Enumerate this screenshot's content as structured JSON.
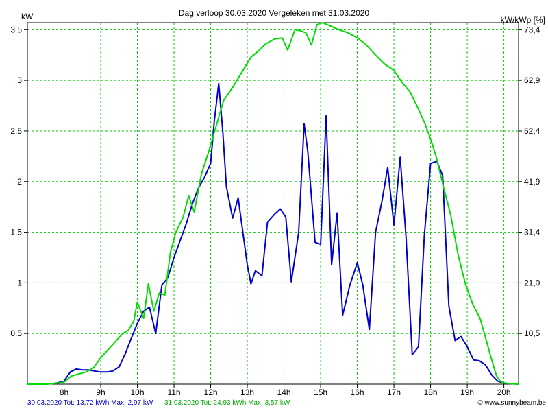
{
  "chart_data": {
    "type": "line",
    "title": "Dag  verloop 30.03.2020   Vergeleken met 31.03.2020",
    "ylabel_left": "kW",
    "ylabel_right": "kW/kWp [%]",
    "xlim": [
      7.0,
      20.4
    ],
    "ylim": [
      0,
      3.57
    ],
    "x_ticks": [
      {
        "value": 8,
        "label": "8h"
      },
      {
        "value": 9,
        "label": "9h"
      },
      {
        "value": 10,
        "label": "10h"
      },
      {
        "value": 11,
        "label": "11h"
      },
      {
        "value": 12,
        "label": "12h"
      },
      {
        "value": 13,
        "label": "13h"
      },
      {
        "value": 14,
        "label": "14h"
      },
      {
        "value": 15,
        "label": "15h"
      },
      {
        "value": 16,
        "label": "16h"
      },
      {
        "value": 17,
        "label": "17h"
      },
      {
        "value": 18,
        "label": "18h"
      },
      {
        "value": 19,
        "label": "19h"
      },
      {
        "value": 20,
        "label": "20h"
      }
    ],
    "y_ticks_left": [
      {
        "value": 0.5,
        "label": "0.5"
      },
      {
        "value": 1,
        "label": "1"
      },
      {
        "value": 1.5,
        "label": "1.5"
      },
      {
        "value": 2,
        "label": "2"
      },
      {
        "value": 2.5,
        "label": "2.5"
      },
      {
        "value": 3,
        "label": "3"
      },
      {
        "value": 3.5,
        "label": "3.5"
      }
    ],
    "y_ticks_right": [
      {
        "value": 0.5,
        "label": "10,5"
      },
      {
        "value": 1,
        "label": "21,0"
      },
      {
        "value": 1.5,
        "label": "31,4"
      },
      {
        "value": 2,
        "label": "41,9"
      },
      {
        "value": 2.5,
        "label": "52,4"
      },
      {
        "value": 3,
        "label": "62,9"
      },
      {
        "value": 3.5,
        "label": "73,4"
      }
    ],
    "grid": true,
    "series": [
      {
        "name": "30.03.2020",
        "color": "#0000cc",
        "footer": "30.03.2020 Tot: 13,72 kWh Max: 2,97 kW",
        "points": [
          [
            7.0,
            0
          ],
          [
            7.5,
            0
          ],
          [
            7.8,
            0.01
          ],
          [
            8.0,
            0.03
          ],
          [
            8.17,
            0.12
          ],
          [
            8.33,
            0.15
          ],
          [
            8.5,
            0.14
          ],
          [
            8.67,
            0.14
          ],
          [
            8.83,
            0.13
          ],
          [
            9.0,
            0.12
          ],
          [
            9.17,
            0.12
          ],
          [
            9.33,
            0.13
          ],
          [
            9.5,
            0.17
          ],
          [
            9.67,
            0.3
          ],
          [
            9.83,
            0.45
          ],
          [
            10.0,
            0.6
          ],
          [
            10.17,
            0.72
          ],
          [
            10.33,
            0.76
          ],
          [
            10.5,
            0.5
          ],
          [
            10.67,
            0.98
          ],
          [
            10.83,
            1.05
          ],
          [
            11.0,
            1.25
          ],
          [
            11.17,
            1.42
          ],
          [
            11.33,
            1.58
          ],
          [
            11.5,
            1.78
          ],
          [
            11.67,
            1.94
          ],
          [
            11.83,
            2.04
          ],
          [
            12.0,
            2.18
          ],
          [
            12.1,
            2.6
          ],
          [
            12.22,
            2.97
          ],
          [
            12.33,
            2.5
          ],
          [
            12.43,
            1.95
          ],
          [
            12.6,
            1.64
          ],
          [
            12.75,
            1.84
          ],
          [
            13.0,
            1.18
          ],
          [
            13.1,
            0.99
          ],
          [
            13.22,
            1.12
          ],
          [
            13.4,
            1.07
          ],
          [
            13.55,
            1.6
          ],
          [
            13.75,
            1.68
          ],
          [
            13.9,
            1.73
          ],
          [
            14.05,
            1.65
          ],
          [
            14.2,
            1.01
          ],
          [
            14.4,
            1.5
          ],
          [
            14.55,
            2.57
          ],
          [
            14.65,
            2.3
          ],
          [
            14.85,
            1.4
          ],
          [
            15.0,
            1.38
          ],
          [
            15.15,
            2.65
          ],
          [
            15.3,
            1.18
          ],
          [
            15.45,
            1.69
          ],
          [
            15.6,
            0.68
          ],
          [
            15.8,
            0.98
          ],
          [
            16.0,
            1.2
          ],
          [
            16.15,
            0.98
          ],
          [
            16.33,
            0.54
          ],
          [
            16.5,
            1.5
          ],
          [
            16.67,
            1.8
          ],
          [
            16.83,
            2.14
          ],
          [
            17.0,
            1.57
          ],
          [
            17.17,
            2.24
          ],
          [
            17.33,
            1.46
          ],
          [
            17.5,
            0.29
          ],
          [
            17.67,
            0.37
          ],
          [
            17.83,
            1.47
          ],
          [
            18.0,
            2.18
          ],
          [
            18.17,
            2.2
          ],
          [
            18.33,
            2.06
          ],
          [
            18.5,
            0.77
          ],
          [
            18.67,
            0.43
          ],
          [
            18.83,
            0.47
          ],
          [
            19.0,
            0.37
          ],
          [
            19.17,
            0.24
          ],
          [
            19.33,
            0.23
          ],
          [
            19.5,
            0.19
          ],
          [
            19.67,
            0.09
          ],
          [
            19.83,
            0.03
          ],
          [
            20.0,
            0.01
          ],
          [
            20.4,
            0
          ]
        ]
      },
      {
        "name": "31.03.2020",
        "color": "#00dd00",
        "footer": "31.03.2020 Tot: 24,93 kWh Max: 3,57 kW",
        "points": [
          [
            7.0,
            0
          ],
          [
            7.5,
            0
          ],
          [
            7.83,
            0.01
          ],
          [
            8.0,
            0.02
          ],
          [
            8.2,
            0.08
          ],
          [
            8.4,
            0.1
          ],
          [
            8.6,
            0.12
          ],
          [
            8.8,
            0.16
          ],
          [
            9.0,
            0.26
          ],
          [
            9.2,
            0.34
          ],
          [
            9.4,
            0.42
          ],
          [
            9.6,
            0.5
          ],
          [
            9.75,
            0.53
          ],
          [
            9.9,
            0.62
          ],
          [
            10.0,
            0.81
          ],
          [
            10.17,
            0.65
          ],
          [
            10.3,
            0.99
          ],
          [
            10.45,
            0.72
          ],
          [
            10.6,
            0.9
          ],
          [
            10.75,
            0.88
          ],
          [
            10.9,
            1.3
          ],
          [
            11.05,
            1.5
          ],
          [
            11.25,
            1.65
          ],
          [
            11.4,
            1.86
          ],
          [
            11.55,
            1.7
          ],
          [
            11.75,
            2.08
          ],
          [
            11.95,
            2.3
          ],
          [
            12.15,
            2.55
          ],
          [
            12.35,
            2.8
          ],
          [
            12.6,
            2.93
          ],
          [
            12.85,
            3.08
          ],
          [
            13.1,
            3.23
          ],
          [
            13.3,
            3.29
          ],
          [
            13.5,
            3.36
          ],
          [
            13.75,
            3.41
          ],
          [
            13.95,
            3.42
          ],
          [
            14.1,
            3.3
          ],
          [
            14.3,
            3.5
          ],
          [
            14.45,
            3.49
          ],
          [
            14.6,
            3.47
          ],
          [
            14.75,
            3.35
          ],
          [
            14.9,
            3.55
          ],
          [
            15.05,
            3.57
          ],
          [
            15.25,
            3.54
          ],
          [
            15.5,
            3.5
          ],
          [
            15.75,
            3.47
          ],
          [
            16.0,
            3.42
          ],
          [
            16.25,
            3.35
          ],
          [
            16.5,
            3.25
          ],
          [
            16.75,
            3.16
          ],
          [
            17.0,
            3.1
          ],
          [
            17.2,
            2.99
          ],
          [
            17.45,
            2.88
          ],
          [
            17.65,
            2.73
          ],
          [
            17.85,
            2.57
          ],
          [
            18.0,
            2.42
          ],
          [
            18.15,
            2.25
          ],
          [
            18.35,
            1.95
          ],
          [
            18.55,
            1.67
          ],
          [
            18.75,
            1.28
          ],
          [
            18.95,
            0.99
          ],
          [
            19.15,
            0.79
          ],
          [
            19.35,
            0.65
          ],
          [
            19.5,
            0.46
          ],
          [
            19.65,
            0.26
          ],
          [
            19.8,
            0.08
          ],
          [
            19.9,
            0.03
          ],
          [
            20.0,
            0.01
          ],
          [
            20.4,
            0
          ]
        ]
      }
    ],
    "footer_copyright": "© www.sunnybeam.be"
  }
}
